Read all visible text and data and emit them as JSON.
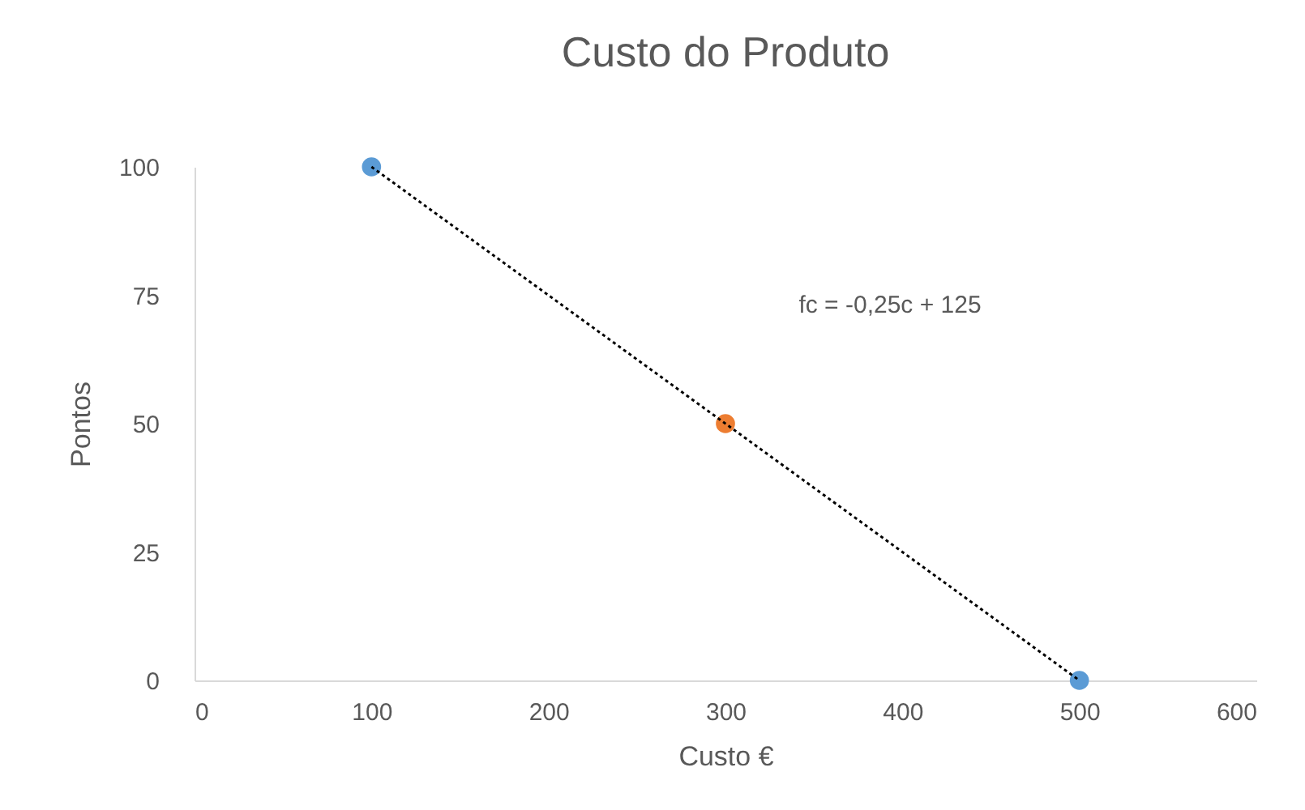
{
  "chart_data": {
    "type": "scatter",
    "title": "Custo do Produto",
    "xlabel": "Custo €",
    "ylabel": "Pontos",
    "xlim": [
      0,
      600
    ],
    "xticks": [
      0,
      100,
      200,
      300,
      400,
      500,
      600
    ],
    "ylim": [
      0,
      100
    ],
    "yticks": [
      0,
      25,
      50,
      75,
      100
    ],
    "grid": false,
    "marker": "circle",
    "annotations": [
      "fc = -0,25c + 125"
    ],
    "series": [
      {
        "x": [
          100,
          300,
          500
        ],
        "values": [
          100,
          50,
          0
        ],
        "colors": [
          "#5b9bd5",
          "#ed7d31",
          "#5b9bd5"
        ]
      },
      {
        "type": "line",
        "x": [
          100,
          500
        ],
        "values": [
          100,
          0
        ],
        "color": "#000000",
        "line_style": "dotted",
        "marker": "none"
      }
    ]
  }
}
